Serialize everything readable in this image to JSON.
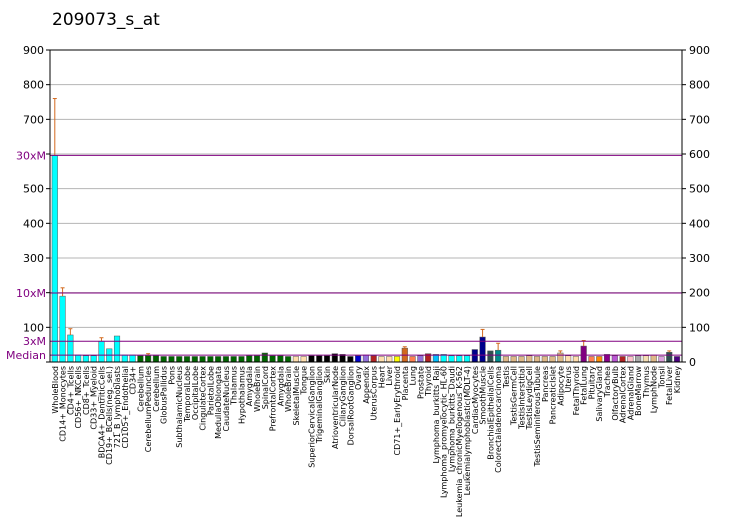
{
  "chart_data": {
    "type": "bar",
    "title": "209073_s_at",
    "ylim": [
      0,
      900
    ],
    "y_ticks": [
      0,
      100,
      200,
      300,
      400,
      500,
      600,
      700,
      800,
      900
    ],
    "left_tick_labels": [
      "",
      "100",
      "",
      "300",
      "400",
      "500",
      "",
      "700",
      "800",
      "900"
    ],
    "right_tick_labels": [
      "0",
      "100",
      "200",
      "300",
      "400",
      "500",
      "600",
      "700",
      "800",
      "900"
    ],
    "grid": true,
    "reference_lines": [
      {
        "label": "30xM",
        "value": 596
      },
      {
        "label": "10xM",
        "value": 199
      },
      {
        "label": "3xM",
        "value": 60
      },
      {
        "label": "Median",
        "value": 20
      }
    ],
    "label_sides": [
      "left",
      "right"
    ],
    "categories": [
      "WholeBlood",
      "CD14+_Monocytes",
      "CD4+_Tcells",
      "CD56+_NKCells",
      "CD8+_Tcells",
      "CD33+_Myeloid",
      "BDCA4+_DentriticCells",
      "CD19+_BCells(neg._sel.)",
      "721_B_lymphoblasts",
      "CD105+_Endothelial",
      "CD34+",
      "Cerebellum",
      "CerebellumPeduncles",
      "Cerebellum",
      "GlobusPallidus",
      "Pons",
      "SubthalamicNucleus",
      "TemporalLobe",
      "OccipitalLobe",
      "CingulateCortex",
      "ParietalLobe",
      "MedullaOblongata",
      "CaudateNucleus",
      "Thalamus",
      "Hypothalamus",
      "Amygdala",
      "WholeBrain",
      "SpinalCord",
      "PrefrontalCortex",
      "Amygdala",
      "WholeBrain",
      "SkeletalMuscle",
      "Tongue",
      "SuperiorCervicalGanglion",
      "TrigeminalGanglion",
      "Skin",
      "AtrioventricularNode",
      "CiliaryGanglion",
      "DorsalRootGanglion",
      "Ovary",
      "Appendix",
      "UterusCorpus",
      "Heart",
      "Liver",
      "CD71+_EarlyErythroid",
      "Placenta",
      "Lung",
      "Prostate",
      "Thyroid",
      "Lymphoma_burkitts_Raji",
      "Lymphoma_promyelocytic_HL-60",
      "Lymphoma_burkitts_Daudi",
      "Leukemia_chronicMyelogenous_K-562",
      "Leukemialymphoblastic(MOLT-4)",
      "CardiacMyocytes",
      "SmoothMuscle",
      "BronchialEpithelialCells",
      "Colorectaladenocarcinoma",
      "Testis",
      "TestisGermCell",
      "TestisInterstitial",
      "TestisLeydigCell",
      "TestisSeminiferousTubule",
      "Pancreas",
      "PancreaticIslet",
      "Adipocyte",
      "Uterus",
      "FetalThyroid",
      "FetalLung",
      "Pituitary",
      "SalivaryGland",
      "Trachea",
      "OlfactoryBulb",
      "AdrenalCortex",
      "AdrenalGland",
      "BoneMarrow",
      "Thymus",
      "LymphNode",
      "Tonsil",
      "FetalLiver",
      "Kidney"
    ],
    "values": [
      596,
      190,
      78,
      20,
      18,
      18,
      60,
      38,
      75,
      20,
      20,
      18,
      18,
      18,
      16,
      16,
      16,
      16,
      16,
      16,
      16,
      16,
      16,
      16,
      16,
      18,
      18,
      26,
      18,
      18,
      16,
      16,
      16,
      18,
      18,
      18,
      24,
      22,
      16,
      18,
      20,
      18,
      16,
      16,
      16,
      40,
      16,
      18,
      24,
      22,
      22,
      18,
      18,
      18,
      36,
      72,
      32,
      34,
      16,
      16,
      16,
      18,
      16,
      16,
      16,
      26,
      18,
      16,
      46,
      16,
      16,
      22,
      18,
      16,
      16,
      18,
      18,
      20,
      16,
      28,
      16
    ],
    "error_high": [
      760,
      214,
      96,
      null,
      null,
      null,
      70,
      null,
      null,
      null,
      null,
      null,
      24,
      null,
      null,
      null,
      null,
      null,
      null,
      null,
      null,
      null,
      null,
      null,
      null,
      null,
      null,
      null,
      null,
      null,
      null,
      null,
      null,
      null,
      null,
      null,
      null,
      null,
      null,
      null,
      null,
      null,
      null,
      null,
      null,
      44,
      null,
      null,
      null,
      null,
      null,
      null,
      null,
      null,
      null,
      94,
      null,
      54,
      null,
      null,
      null,
      null,
      null,
      null,
      null,
      32,
      null,
      null,
      62,
      null,
      null,
      null,
      null,
      null,
      null,
      null,
      null,
      null,
      null,
      32,
      null
    ],
    "colors": [
      "#00ffff",
      "#00ffff",
      "#00ffff",
      "#00ffff",
      "#00ffff",
      "#00ffff",
      "#00ffff",
      "#00ffff",
      "#00ffff",
      "#00ffff",
      "#00ffff",
      "#006400",
      "#006400",
      "#006400",
      "#006400",
      "#006400",
      "#006400",
      "#006400",
      "#006400",
      "#006400",
      "#006400",
      "#006400",
      "#006400",
      "#006400",
      "#006400",
      "#006400",
      "#006400",
      "#006400",
      "#006400",
      "#006400",
      "#006400",
      "#ffdead",
      "#ffdead",
      "#000000",
      "#000000",
      "#000000",
      "#000000",
      "#000000",
      "#000000",
      "#0000cd",
      "#9370db",
      "#b22222",
      "#ffdead",
      "#ffdead",
      "#ffff00",
      "#d2691e",
      "#ff7f50",
      "#9370db",
      "#b22222",
      "#00bfff",
      "#00ffff",
      "#00ffff",
      "#00ffff",
      "#00ffff",
      "#00008b",
      "#00008b",
      "#2f4f4f",
      "#008b8b",
      "#deb887",
      "#deb887",
      "#deb887",
      "#deb887",
      "#deb887",
      "#deb887",
      "#deb887",
      "#deb887",
      "#ffdead",
      "#ffdead",
      "#800080",
      "#ff7f50",
      "#ff8c00",
      "#8b008b",
      "#ba55d3",
      "#b22222",
      "#ffc0cb",
      "#a9a9a9",
      "#f5deb3",
      "#deb887",
      "#dda0dd",
      "#2f4f4f",
      "#4b0082"
    ]
  }
}
